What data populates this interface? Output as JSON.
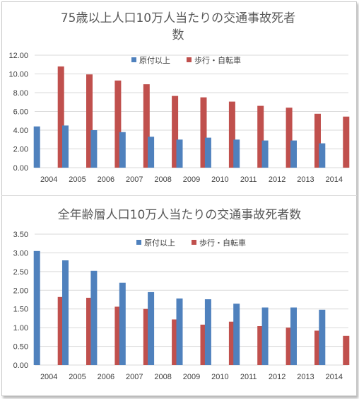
{
  "chart_data": [
    {
      "type": "bar",
      "title_line1": "75歳以上人口10万人当たりの交通事故死者",
      "title_line2": "数",
      "categories": [
        "2004",
        "2005",
        "2006",
        "2007",
        "2008",
        "2009",
        "2010",
        "2011",
        "2012",
        "2013",
        "2014"
      ],
      "series": [
        {
          "name": "原付以上",
          "color": "#4f81bd",
          "values": [
            4.4,
            4.5,
            4.0,
            3.8,
            3.3,
            3.0,
            3.2,
            3.0,
            2.9,
            2.9,
            2.6
          ]
        },
        {
          "name": "歩行・自転車",
          "color": "#c0504d",
          "values": [
            10.8,
            9.95,
            9.3,
            8.9,
            7.65,
            7.5,
            7.05,
            6.6,
            6.4,
            5.75,
            5.45
          ]
        }
      ],
      "y_ticks": [
        "0.00",
        "2.00",
        "4.00",
        "6.00",
        "8.00",
        "10.00",
        "12.00"
      ],
      "ylim": [
        0,
        12
      ],
      "grid": true,
      "legend_position": "top"
    },
    {
      "type": "bar",
      "title_line1": "全年齢層人口10万人当たりの交通事故死者数",
      "title_line2": "",
      "categories": [
        "2004",
        "2005",
        "2006",
        "2007",
        "2008",
        "2009",
        "2010",
        "2011",
        "2012",
        "2013",
        "2014"
      ],
      "series": [
        {
          "name": "原付以上",
          "color": "#4f81bd",
          "values": [
            3.05,
            2.8,
            2.52,
            2.2,
            1.95,
            1.78,
            1.76,
            1.64,
            1.54,
            1.54,
            1.48
          ]
        },
        {
          "name": "歩行・自転車",
          "color": "#c0504d",
          "values": [
            1.82,
            1.8,
            1.56,
            1.5,
            1.22,
            1.08,
            1.16,
            1.04,
            1.0,
            0.92,
            0.78
          ]
        }
      ],
      "y_ticks": [
        "0.00",
        "0.50",
        "1.00",
        "1.50",
        "2.00",
        "2.50",
        "3.00",
        "3.50"
      ],
      "ylim": [
        0,
        3.5
      ],
      "grid": true,
      "legend_position": "top"
    }
  ]
}
